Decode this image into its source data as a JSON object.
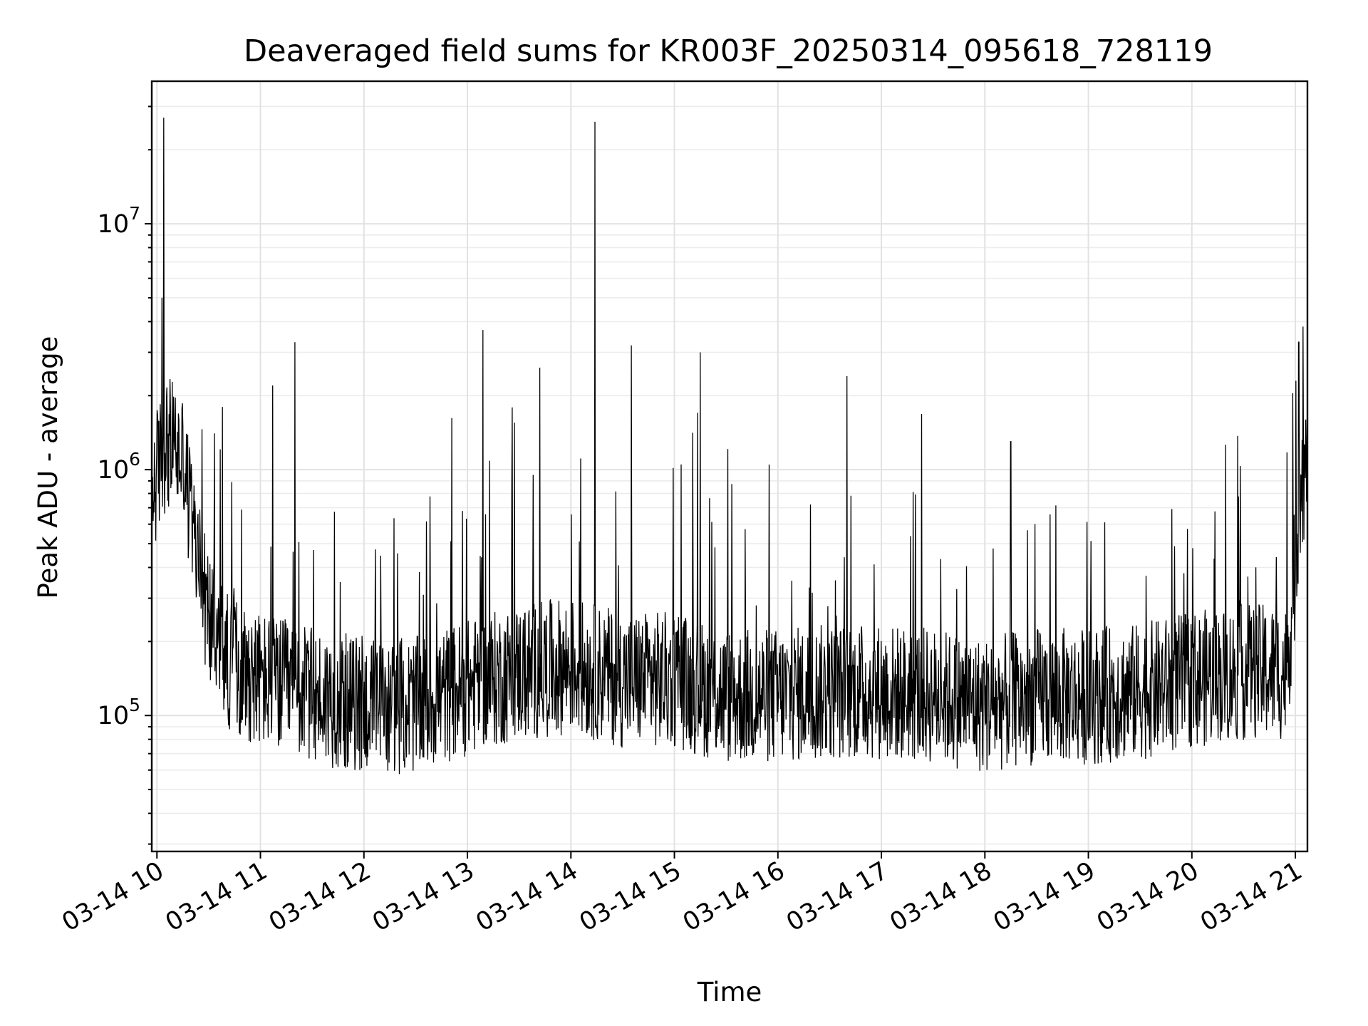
{
  "chart_data": {
    "type": "line",
    "title": "Deaveraged field sums for KR003F_20250314_095618_728119",
    "xlabel": "Time",
    "ylabel": "Peak ADU - average",
    "yscale": "log",
    "ylim": [
      28000,
      38000000
    ],
    "xlim": [
      "03-14 09:57",
      "03-14 21:07"
    ],
    "grid": true,
    "x_ticks": [
      "03-14 10",
      "03-14 11",
      "03-14 12",
      "03-14 13",
      "03-14 14",
      "03-14 15",
      "03-14 16",
      "03-14 17",
      "03-14 18",
      "03-14 19",
      "03-14 20",
      "03-14 21"
    ],
    "y_ticks": [
      {
        "value": 100000,
        "base": "10",
        "exp": "5"
      },
      {
        "value": 1000000,
        "base": "10",
        "exp": "6"
      },
      {
        "value": 10000000,
        "base": "10",
        "exp": "7"
      }
    ],
    "series": [
      {
        "color": "#000000",
        "points": [
          [
            "03-14 09:57",
            700000
          ],
          [
            "03-14 10:00",
            1500000
          ],
          [
            "03-14 10:03",
            5000000
          ],
          [
            "03-14 10:04",
            27000000
          ],
          [
            "03-14 10:05",
            900000
          ],
          [
            "03-14 10:10",
            1200000
          ],
          [
            "03-14 10:15",
            1500000
          ],
          [
            "03-14 10:20",
            500000
          ],
          [
            "03-14 10:25",
            400000
          ],
          [
            "03-14 10:30",
            260000
          ],
          [
            "03-14 10:35",
            180000
          ],
          [
            "03-14 10:38",
            1800000
          ],
          [
            "03-14 10:40",
            150000
          ],
          [
            "03-14 10:45",
            110000
          ],
          [
            "03-14 10:50",
            220000
          ],
          [
            "03-14 10:55",
            130000
          ],
          [
            "03-14 11:00",
            90000
          ],
          [
            "03-14 11:05",
            140000
          ],
          [
            "03-14 11:07",
            2200000
          ],
          [
            "03-14 11:10",
            110000
          ],
          [
            "03-14 11:15",
            160000
          ],
          [
            "03-14 11:20",
            3300000
          ],
          [
            "03-14 11:25",
            120000
          ],
          [
            "03-14 11:30",
            100000
          ],
          [
            "03-14 11:40",
            140000
          ],
          [
            "03-14 11:50",
            90000
          ],
          [
            "03-14 12:00",
            110000
          ],
          [
            "03-14 12:10",
            130000
          ],
          [
            "03-14 12:20",
            90000
          ],
          [
            "03-14 12:30",
            120000
          ],
          [
            "03-14 12:40",
            100000
          ],
          [
            "03-14 12:50",
            130000
          ],
          [
            "03-14 13:00",
            110000
          ],
          [
            "03-14 13:05",
            150000
          ],
          [
            "03-14 13:09",
            3700000
          ],
          [
            "03-14 13:15",
            140000
          ],
          [
            "03-14 13:25",
            160000
          ],
          [
            "03-14 13:35",
            130000
          ],
          [
            "03-14 13:42",
            2600000
          ],
          [
            "03-14 13:50",
            170000
          ],
          [
            "03-14 14:00",
            150000
          ],
          [
            "03-14 14:10",
            140000
          ],
          [
            "03-14 14:14",
            26000000
          ],
          [
            "03-14 14:20",
            160000
          ],
          [
            "03-14 14:30",
            130000
          ],
          [
            "03-14 14:35",
            3200000
          ],
          [
            "03-14 14:45",
            150000
          ],
          [
            "03-14 14:55",
            120000
          ],
          [
            "03-14 15:05",
            140000
          ],
          [
            "03-14 15:15",
            3000000
          ],
          [
            "03-14 15:25",
            130000
          ],
          [
            "03-14 15:35",
            110000
          ],
          [
            "03-14 15:45",
            120000
          ],
          [
            "03-14 15:55",
            100000
          ],
          [
            "03-14 16:05",
            130000
          ],
          [
            "03-14 16:15",
            110000
          ],
          [
            "03-14 16:25",
            120000
          ],
          [
            "03-14 16:35",
            140000
          ],
          [
            "03-14 16:40",
            2400000
          ],
          [
            "03-14 16:50",
            120000
          ],
          [
            "03-14 17:00",
            110000
          ],
          [
            "03-14 17:10",
            130000
          ],
          [
            "03-14 17:20",
            110000
          ],
          [
            "03-14 17:30",
            120000
          ],
          [
            "03-14 17:40",
            110000
          ],
          [
            "03-14 17:50",
            100000
          ],
          [
            "03-14 18:00",
            110000
          ],
          [
            "03-14 18:10",
            120000
          ],
          [
            "03-14 18:15",
            1300000
          ],
          [
            "03-14 18:25",
            110000
          ],
          [
            "03-14 18:35",
            120000
          ],
          [
            "03-14 18:45",
            110000
          ],
          [
            "03-14 18:55",
            100000
          ],
          [
            "03-14 19:05",
            120000
          ],
          [
            "03-14 19:15",
            130000
          ],
          [
            "03-14 19:25",
            110000
          ],
          [
            "03-14 19:35",
            120000
          ],
          [
            "03-14 19:45",
            110000
          ],
          [
            "03-14 19:55",
            130000
          ],
          [
            "03-14 20:05",
            140000
          ],
          [
            "03-14 20:15",
            130000
          ],
          [
            "03-14 20:25",
            150000
          ],
          [
            "03-14 20:35",
            140000
          ],
          [
            "03-14 20:45",
            160000
          ],
          [
            "03-14 20:55",
            140000
          ],
          [
            "03-14 21:00",
            400000
          ],
          [
            "03-14 21:02",
            3300000
          ],
          [
            "03-14 21:04",
            1000000
          ],
          [
            "03-14 21:07",
            1100000
          ]
        ]
      }
    ],
    "noise": {
      "baseline": [
        [
          "03-14 09:57",
          800000
        ],
        [
          "03-14 10:05",
          1300000
        ],
        [
          "03-14 10:15",
          1100000
        ],
        [
          "03-14 10:22",
          500000
        ],
        [
          "03-14 10:30",
          250000
        ],
        [
          "03-14 10:40",
          170000
        ],
        [
          "03-14 11:00",
          140000
        ],
        [
          "03-14 11:30",
          120000
        ],
        [
          "03-14 12:00",
          110000
        ],
        [
          "03-14 12:30",
          110000
        ],
        [
          "03-14 13:00",
          130000
        ],
        [
          "03-14 13:30",
          150000
        ],
        [
          "03-14 14:00",
          160000
        ],
        [
          "03-14 14:30",
          140000
        ],
        [
          "03-14 15:00",
          140000
        ],
        [
          "03-14 15:30",
          120000
        ],
        [
          "03-14 16:00",
          120000
        ],
        [
          "03-14 16:30",
          125000
        ],
        [
          "03-14 17:00",
          125000
        ],
        [
          "03-14 17:30",
          120000
        ],
        [
          "03-14 18:00",
          110000
        ],
        [
          "03-14 18:30",
          120000
        ],
        [
          "03-14 19:00",
          120000
        ],
        [
          "03-14 19:30",
          125000
        ],
        [
          "03-14 20:00",
          140000
        ],
        [
          "03-14 20:30",
          150000
        ],
        [
          "03-14 20:55",
          150000
        ],
        [
          "03-14 21:00",
          400000
        ],
        [
          "03-14 21:03",
          900000
        ],
        [
          "03-14 21:07",
          1000000
        ]
      ],
      "spread_decades": 0.28
    }
  }
}
